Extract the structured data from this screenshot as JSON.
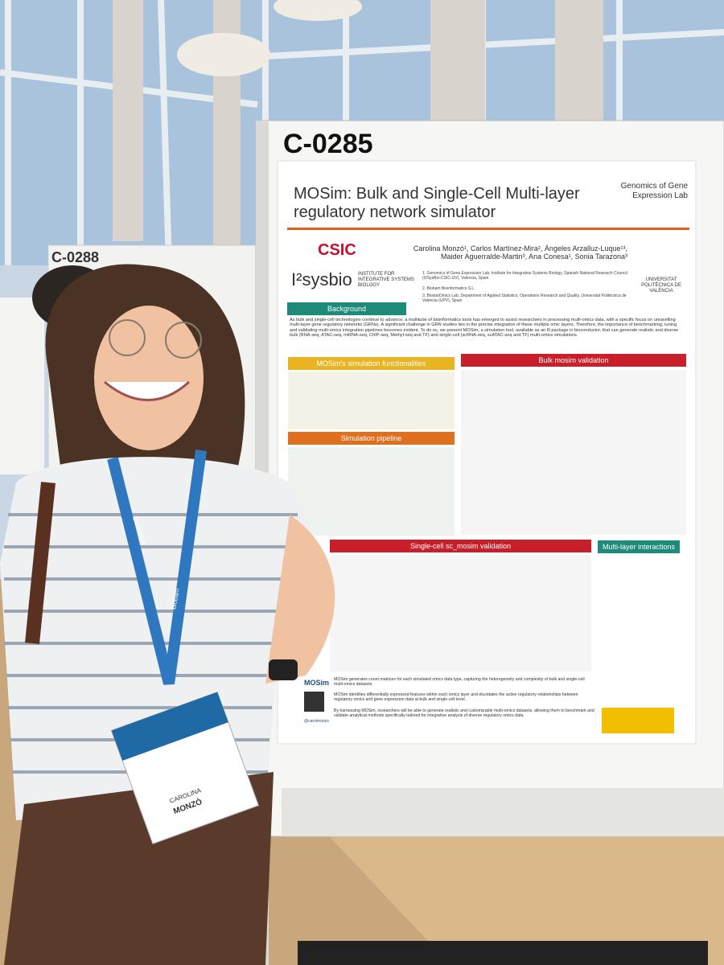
{
  "poster": {
    "number": "C-0285",
    "title": "MOSim: Bulk and Single-Cell Multi-layer regulatory network simulator",
    "lab": "Genomics of Gene Expression Lab",
    "institutions": [
      "CSIC",
      "I²sysbio",
      "INSTITUTE FOR INTEGRATIVE SYSTEMS BIOLOGY",
      "UNIVERSITAT POLITÈCNICA DE VALÈNCIA"
    ],
    "authors": "Carolina Monzó¹, Carlos Martínez-Mira², Ángeles Arzalluz-Luque¹³, Maider Aguerralde-Martin³, Ana Conesa¹, Sonia Tarazona³",
    "affiliations": [
      "1. Genomics of Gene Expression Lab, Institute for Integrative Systems Biology, Spanish National Research Council (I2SysBio-CSIC-UV), Valencia, Spain",
      "2. Biobam Bioinformatics S.L.",
      "3. BiostatOmics Lab, Department of Applied Statistics, Operations Research and Quality, Universitat Politècnica de València (UPV), Spain"
    ],
    "background_text": "As bulk and single-cell technologies continue to advance, a multitude of bioinformatics tools has emerged to assist researchers in processing multi-omics data, with a specific focus on unravelling multi-layer gene regulatory networks (GRNs). A significant challenge in GRN studies lies in the precise integration of these multiple omic layers. Therefore, the importance of benchmarking, tuning and validating multi-omics integration pipelines becomes evident. To do so, we present MOSim, a simulation tool, available as an R package in bioconductor, that can generate realistic and diverse bulk (RNA-seq, ATAC-seq, miRNA-seq, ChIP-seq, Methyl-seq and TF) and single-cell (scRNA-seq, scATAC-seq and TF) multi-omics simulations.",
    "sections": [
      "Background",
      "MOSim's simulation functionalities",
      "Bulk mosim validation",
      "Simulation pipeline",
      "Single-cell sc_mosim validation",
      "Multi-layer interactions"
    ],
    "conclusions": [
      "MOSim generates count matrices for each simulated omics data type, capturing the heterogeneity and complexity of bulk and single-cell multi-omics datasets.",
      "MOSim identifies differentially expressed features within each omics layer and elucidates the active regulatory relationships between regulatory omics and gene expression data at bulk and single-cell level.",
      "By harnessing MOSim, researchers will be able to generate realistic and customizable multi-omics datasets, allowing them to benchmark and validate analytical methods specifically tailored for integrative analysis of diverse regulatory omics data."
    ],
    "logo": "MOSim",
    "handle": "@carolmonzo"
  },
  "neighbor_poster": "C-0288",
  "lanyard": [
    "OmicsBox",
    "biobam"
  ],
  "badge": {
    "first_name": "CAROLINA",
    "last_name": "MONZÓ"
  }
}
